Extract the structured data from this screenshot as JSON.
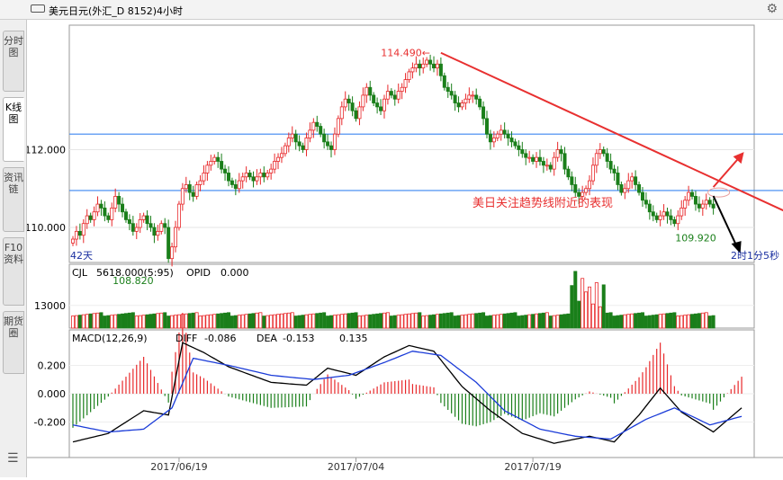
{
  "window": {
    "title": "美元日元(外汇_D 8152)4小时"
  },
  "sidebar": {
    "tabs": [
      {
        "label": "分时图",
        "active": false
      },
      {
        "label": "K线图",
        "active": true
      },
      {
        "label": "资讯链",
        "active": false
      },
      {
        "label": "F10资料",
        "active": false
      },
      {
        "label": "期货圈",
        "active": false
      }
    ],
    "menu_icon": "hamburger-icon",
    "settings_icon": "gear-icon"
  },
  "colors": {
    "up": "#e8282a",
    "down": "#1a7f1a",
    "guide": "#3b86f0",
    "trend": "#e83030",
    "macd": "#000000",
    "signal": "#1a3bd8"
  },
  "chart_data": [
    {
      "type": "candlestick",
      "ylim": [
        109.1,
        115.2
      ],
      "yticks": [
        110.0,
        112.0
      ],
      "ytick_labels": [
        "110.000",
        "112.000"
      ],
      "x_dates": [
        "2017/06/19",
        "2017/07/04",
        "2017/07/19"
      ],
      "x_date_idx": [
        30,
        80,
        130
      ],
      "n_bars": 190,
      "closes": [
        109.7,
        109.9,
        109.8,
        110.1,
        110.3,
        110.2,
        110.4,
        110.6,
        110.5,
        110.3,
        110.2,
        110.5,
        110.8,
        110.6,
        110.4,
        110.2,
        110.1,
        109.9,
        110.0,
        110.2,
        110.3,
        110.1,
        110.0,
        109.8,
        109.9,
        110.1,
        110.0,
        109.2,
        109.5,
        110.0,
        110.6,
        111.0,
        111.1,
        110.9,
        110.8,
        111.1,
        111.2,
        111.4,
        111.6,
        111.7,
        111.8,
        111.7,
        111.5,
        111.4,
        111.2,
        111.1,
        111.0,
        111.2,
        111.3,
        111.4,
        111.3,
        111.2,
        111.3,
        111.4,
        111.3,
        111.4,
        111.5,
        111.7,
        111.8,
        111.9,
        112.1,
        112.3,
        112.4,
        112.2,
        112.1,
        112.0,
        112.3,
        112.5,
        112.7,
        112.6,
        112.4,
        112.2,
        112.1,
        112.0,
        112.4,
        112.8,
        113.1,
        113.3,
        113.2,
        113.0,
        112.8,
        113.1,
        113.4,
        113.6,
        113.4,
        113.2,
        113.1,
        113.0,
        113.3,
        113.5,
        113.4,
        113.3,
        113.5,
        113.6,
        113.8,
        114.0,
        114.1,
        114.2,
        114.1,
        114.2,
        114.3,
        114.2,
        114.1,
        114.2,
        113.9,
        113.6,
        113.5,
        113.4,
        113.2,
        113.1,
        113.2,
        113.3,
        113.4,
        113.4,
        113.3,
        113.1,
        112.8,
        112.4,
        112.2,
        112.3,
        112.4,
        112.5,
        112.4,
        112.3,
        112.2,
        112.1,
        112.0,
        111.9,
        111.8,
        111.8,
        111.7,
        111.8,
        111.7,
        111.6,
        111.6,
        111.5,
        111.8,
        112.0,
        111.9,
        111.5,
        111.3,
        111.1,
        110.9,
        110.8,
        110.9,
        111.0,
        111.2,
        111.6,
        111.9,
        112.0,
        111.9,
        111.7,
        111.5,
        111.4,
        111.1,
        110.9,
        111.0,
        111.2,
        111.3,
        111.1,
        110.9,
        110.7,
        110.6,
        110.4,
        110.3,
        110.2,
        110.3,
        110.4,
        110.3,
        110.2,
        110.1,
        110.3,
        110.5,
        110.7,
        110.9,
        110.8,
        110.6,
        110.5,
        110.6,
        110.7,
        110.6,
        110.5
      ],
      "h_lines": [
        112.4,
        110.95
      ],
      "trendline": {
        "from_idx": 104,
        "from_val": 114.49,
        "to_idx": 210,
        "to_val": 110.05
      },
      "annotations": {
        "high": "114.490",
        "low_left": "108.820",
        "low_right": "109.920",
        "note": "美日关注趋势线附近的表现",
        "period": "42天",
        "countdown": "2时1分5秒"
      }
    },
    {
      "type": "bar",
      "header_label": "CJL",
      "header_value": "5618.000(5:95)",
      "header_label_2": "OPID",
      "header_value_2": "0.000",
      "ylim": [
        9800,
        18800
      ],
      "yticks": [
        13000
      ],
      "ytick_labels": [
        "13000"
      ],
      "normal_volume": 11500,
      "spike_start_idx": 141,
      "spike_values": [
        15800,
        17800,
        13600,
        16800,
        14900,
        15600,
        13200,
        16200,
        12800,
        15900
      ]
    },
    {
      "type": "line",
      "header_label": "MACD(12,26,9)",
      "diff_label": "DIFF",
      "diff_value": "-0.086",
      "dea_label": "DEA",
      "dea_value": "-0.153",
      "macd_value": "0.135",
      "ylim": [
        -0.45,
        0.45
      ],
      "yticks": [
        0.2,
        0.0,
        -0.2
      ],
      "ytick_labels": [
        "0.200",
        "0.000",
        "-0.200"
      ],
      "series": [
        {
          "name": "DIFF",
          "anchors": [
            [
              0,
              -0.34
            ],
            [
              10,
              -0.28
            ],
            [
              20,
              -0.12
            ],
            [
              27,
              -0.15
            ],
            [
              31,
              0.36
            ],
            [
              37,
              0.29
            ],
            [
              44,
              0.19
            ],
            [
              56,
              0.08
            ],
            [
              66,
              0.06
            ],
            [
              72,
              0.18
            ],
            [
              80,
              0.13
            ],
            [
              88,
              0.26
            ],
            [
              95,
              0.34
            ],
            [
              102,
              0.3
            ],
            [
              110,
              0.05
            ],
            [
              118,
              -0.12
            ],
            [
              127,
              -0.28
            ],
            [
              136,
              -0.35
            ],
            [
              146,
              -0.3
            ],
            [
              153,
              -0.34
            ],
            [
              160,
              -0.15
            ],
            [
              166,
              0.04
            ],
            [
              172,
              -0.13
            ],
            [
              181,
              -0.27
            ],
            [
              189,
              -0.1
            ]
          ]
        },
        {
          "name": "DEA",
          "anchors": [
            [
              0,
              -0.22
            ],
            [
              10,
              -0.27
            ],
            [
              20,
              -0.25
            ],
            [
              28,
              -0.1
            ],
            [
              34,
              0.25
            ],
            [
              44,
              0.2
            ],
            [
              56,
              0.13
            ],
            [
              68,
              0.1
            ],
            [
              78,
              0.13
            ],
            [
              88,
              0.22
            ],
            [
              96,
              0.3
            ],
            [
              104,
              0.27
            ],
            [
              114,
              0.08
            ],
            [
              122,
              -0.12
            ],
            [
              132,
              -0.25
            ],
            [
              142,
              -0.3
            ],
            [
              152,
              -0.32
            ],
            [
              162,
              -0.18
            ],
            [
              170,
              -0.1
            ],
            [
              180,
              -0.22
            ],
            [
              189,
              -0.16
            ]
          ]
        }
      ]
    }
  ]
}
